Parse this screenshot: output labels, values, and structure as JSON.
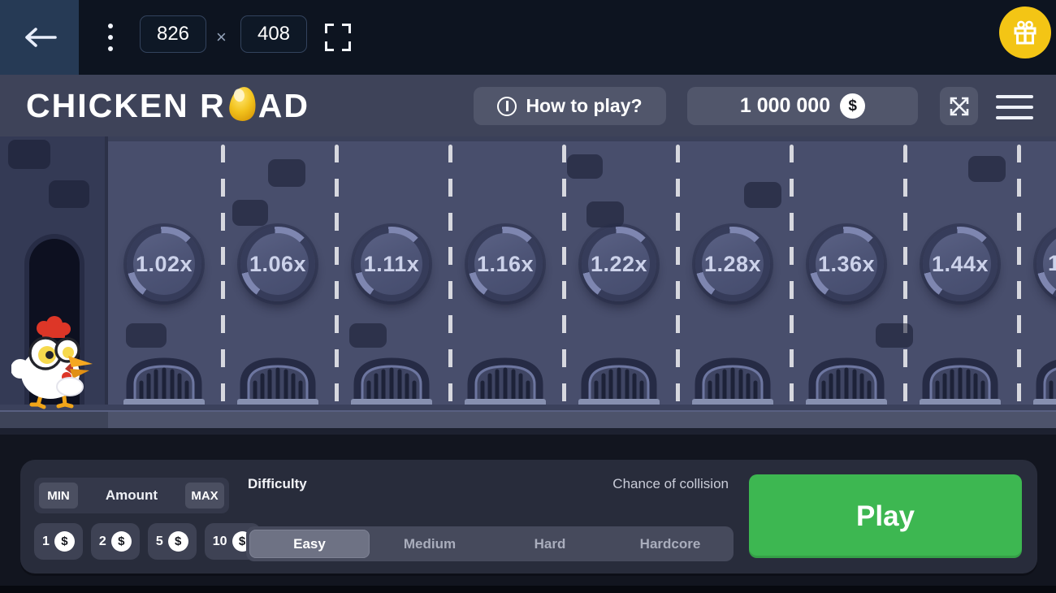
{
  "topbar": {
    "back_icon": "left-arrow",
    "menu_icon": "kebab-menu",
    "width_value": "826",
    "multiply_sign": "×",
    "height_value": "408",
    "fullscreen_icon": "fullscreen-brackets",
    "gift_icon": "gift"
  },
  "header": {
    "logo_part1": "CHICKEN R",
    "logo_egg_icon": "golden-egg",
    "logo_part2": "AD",
    "how_to_play_label": "How to play?",
    "info_icon": "info-circle",
    "balance_value": "1 000 000",
    "coin_icon": "dollar-coin",
    "expand_icon": "expand-arrows",
    "menu_icon": "hamburger-menu"
  },
  "game": {
    "multipliers": [
      "1.02x",
      "1.06x",
      "1.11x",
      "1.16x",
      "1.22x",
      "1.28x",
      "1.36x",
      "1.44x"
    ],
    "partial_multiplier": "1",
    "chicken_icon": "chicken-character",
    "grate_icon": "sewer-grate",
    "doorway_icon": "tunnel-doorway"
  },
  "controls": {
    "min_label": "MIN",
    "amount_label": "Amount",
    "max_label": "MAX",
    "chips": [
      {
        "label": "1"
      },
      {
        "label": "2"
      },
      {
        "label": "5"
      },
      {
        "label": "10"
      }
    ],
    "coin_symbol": "$",
    "difficulty_label": "Difficulty",
    "difficulty_options": [
      "Easy",
      "Medium",
      "Hard",
      "Hardcore"
    ],
    "difficulty_selected": "Easy",
    "chance_label": "Chance of collision",
    "play_label": "Play"
  },
  "colors": {
    "play_green": "#3db751",
    "gift_yellow": "#f3c515",
    "egg_gold": "#f2c21c",
    "road": "#484e6c",
    "sidewalk": "#343a55",
    "panel": "#282c3b",
    "topbar": "#0d1420",
    "header": "#3e4359",
    "multiplier_text": "#ccd2ea"
  }
}
